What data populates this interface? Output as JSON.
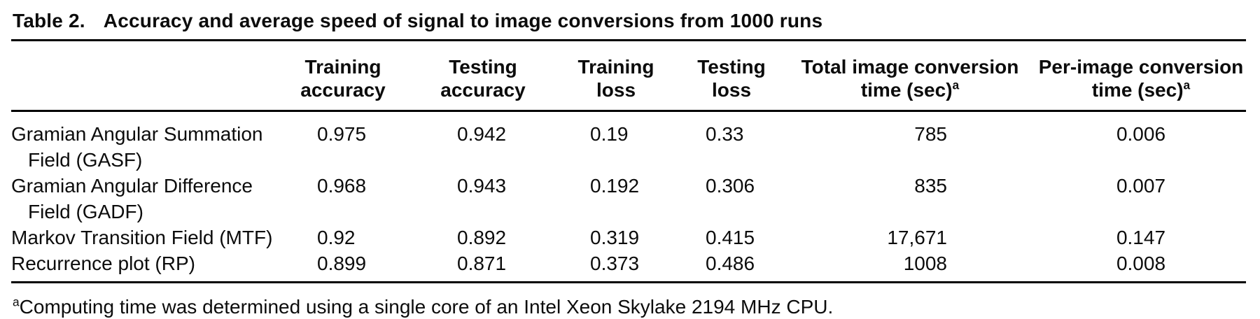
{
  "caption": {
    "label": "Table 2.",
    "title": "Accuracy and average speed of signal to image conversions from 1000 runs"
  },
  "columns": [
    {
      "line1": "Training",
      "line2": "accuracy",
      "sup": ""
    },
    {
      "line1": "Testing",
      "line2": "accuracy",
      "sup": ""
    },
    {
      "line1": "Training",
      "line2": "loss",
      "sup": ""
    },
    {
      "line1": "Testing",
      "line2": "loss",
      "sup": ""
    },
    {
      "line1": "Total image conversion",
      "line2": "time (sec)",
      "sup": "a"
    },
    {
      "line1": "Per-image conversion",
      "line2": "time (sec)",
      "sup": "a"
    }
  ],
  "rows": [
    {
      "label1": "Gramian Angular Summation",
      "label2": "Field (GASF)",
      "values": [
        "0.975",
        "0.942",
        "0.19",
        "0.33",
        "785",
        "0.006"
      ]
    },
    {
      "label1": "Gramian Angular Difference",
      "label2": "Field (GADF)",
      "values": [
        "0.968",
        "0.943",
        "0.192",
        "0.306",
        "835",
        "0.007"
      ]
    },
    {
      "label1": "Markov Transition Field (MTF)",
      "label2": "",
      "values": [
        "0.92",
        "0.892",
        "0.319",
        "0.415",
        "17,671",
        "0.147"
      ]
    },
    {
      "label1": "Recurrence plot (RP)",
      "label2": "",
      "values": [
        "0.899",
        "0.871",
        "0.373",
        "0.486",
        "1008",
        "0.008"
      ]
    }
  ],
  "footnote": {
    "marker": "a",
    "text": "Computing time was determined using a single core of an Intel Xeon Skylake 2194 MHz CPU."
  }
}
